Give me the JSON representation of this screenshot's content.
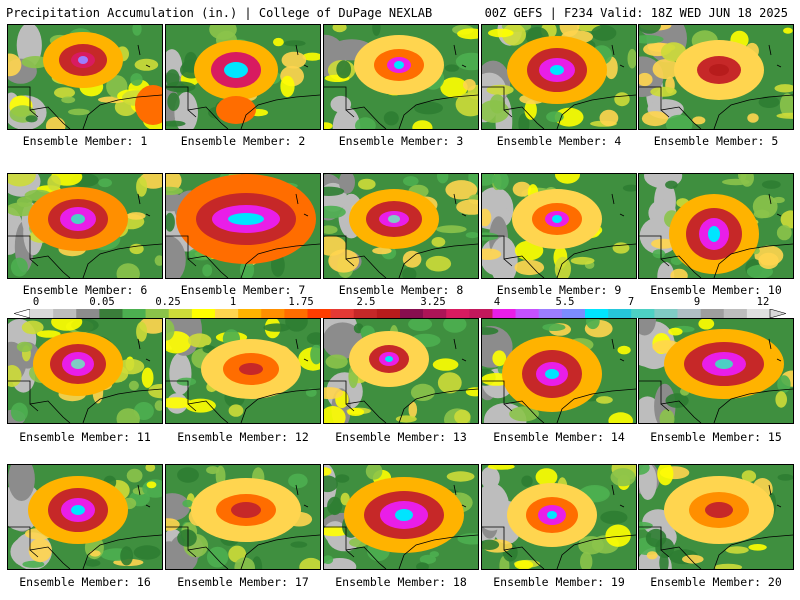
{
  "header": {
    "left": "Precipitation Accumulation (in.) | College of DuPage NEXLAB",
    "right": "00Z GEFS | F234 Valid: 18Z WED JUN 18 2025"
  },
  "colorbar": {
    "labels": [
      "0",
      "0.05",
      "0.25",
      "1",
      "1.75",
      "2.5",
      "3.25",
      "4",
      "5.5",
      "7",
      "9",
      "12"
    ],
    "colors": [
      "#d9d9d9",
      "#bdbdbd",
      "#8c8c8c",
      "#3a7d3a",
      "#4caf50",
      "#8bc34a",
      "#cddc39",
      "#ffff00",
      "#ffd54f",
      "#ffb300",
      "#ff8f00",
      "#ff6d00",
      "#ff3d00",
      "#e53935",
      "#c62828",
      "#b71c1c",
      "#880e4f",
      "#ad1457",
      "#d81b60",
      "#c2185b",
      "#e91ee8",
      "#c651ff",
      "#9c7dff",
      "#7c8cff",
      "#00e5ff",
      "#26c6da",
      "#4dd0c4",
      "#80cbc4",
      "#b0bec5",
      "#9e9e9e",
      "#bdbdbd",
      "#e0e0e0"
    ]
  },
  "members": [
    {
      "label": "Ensemble Member: 1"
    },
    {
      "label": "Ensemble Member: 2"
    },
    {
      "label": "Ensemble Member: 3"
    },
    {
      "label": "Ensemble Member: 4"
    },
    {
      "label": "Ensemble Member: 5"
    },
    {
      "label": "Ensemble Member: 6"
    },
    {
      "label": "Ensemble Member: 7"
    },
    {
      "label": "Ensemble Member: 8"
    },
    {
      "label": "Ensemble Member: 9"
    },
    {
      "label": "Ensemble Member: 10"
    },
    {
      "label": "Ensemble Member: 11"
    },
    {
      "label": "Ensemble Member: 12"
    },
    {
      "label": "Ensemble Member: 13"
    },
    {
      "label": "Ensemble Member: 14"
    },
    {
      "label": "Ensemble Member: 15"
    },
    {
      "label": "Ensemble Member: 16"
    },
    {
      "label": "Ensemble Member: 17"
    },
    {
      "label": "Ensemble Member: 18"
    },
    {
      "label": "Ensemble Member: 19"
    },
    {
      "label": "Ensemble Member: 20"
    }
  ]
}
